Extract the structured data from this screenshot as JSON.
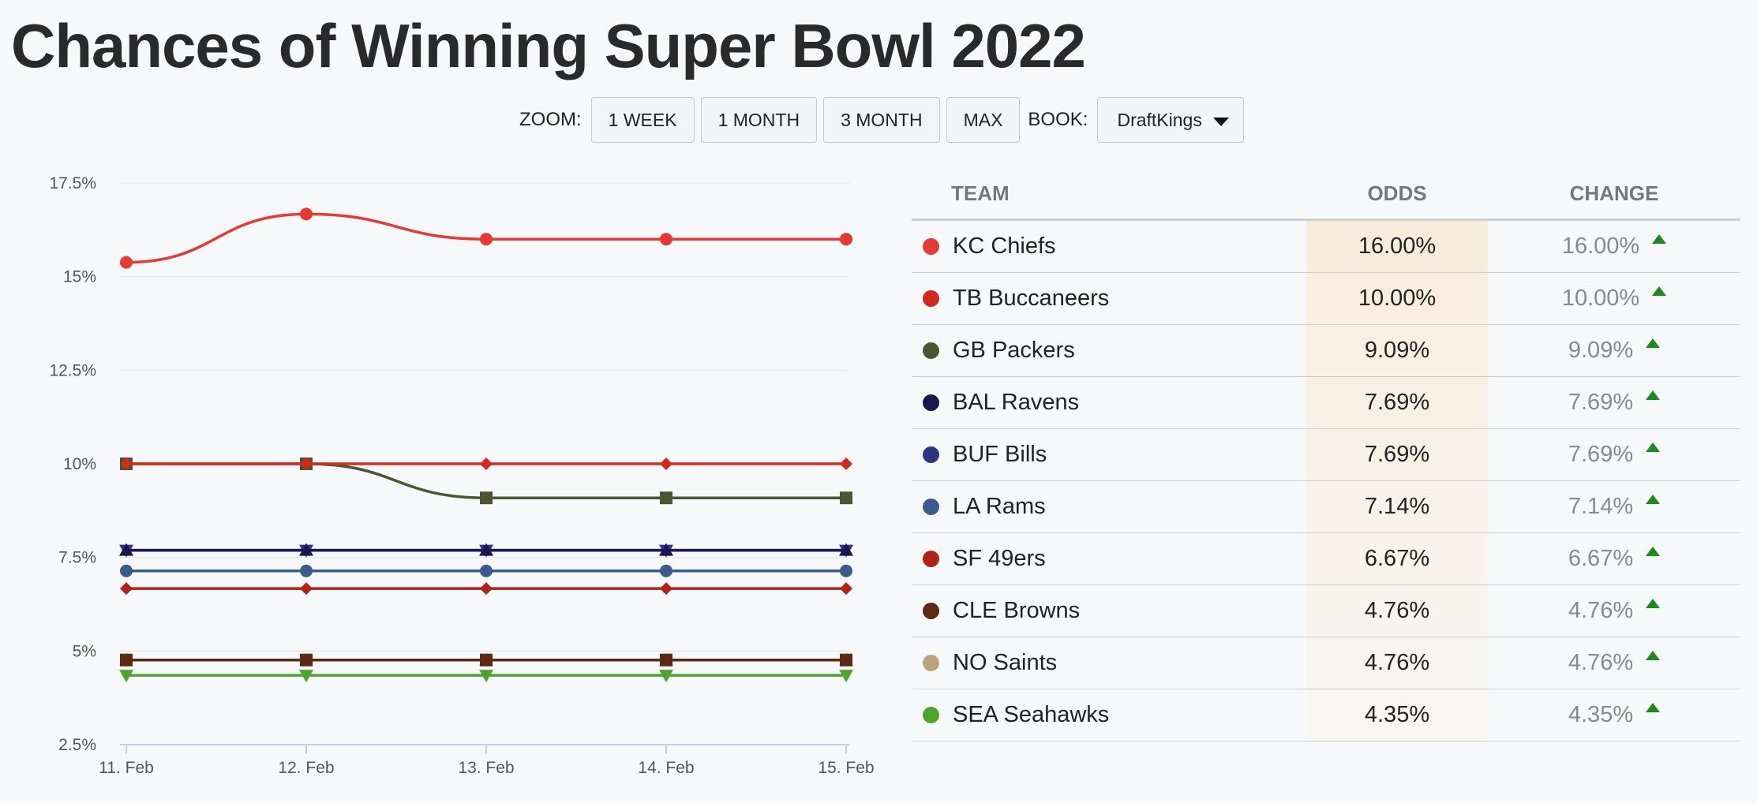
{
  "title": "Chances of Winning Super Bowl 2022",
  "controls": {
    "zoom_label": "ZOOM:",
    "zoom_options": [
      "1 WEEK",
      "1 MONTH",
      "3 MONTH",
      "MAX"
    ],
    "book_label": "BOOK:",
    "book_value": "DraftKings"
  },
  "table": {
    "headers": {
      "team": "TEAM",
      "odds": "ODDS",
      "change": "CHANGE"
    },
    "rows": [
      {
        "team": "KC Chiefs",
        "odds": "16.00%",
        "change": "16.00%",
        "color": "#e53935",
        "odds_bg": "#f8ecdb"
      },
      {
        "team": "TB Buccaneers",
        "odds": "10.00%",
        "change": "10.00%",
        "color": "#d32a1f",
        "odds_bg": "#f9eee0"
      },
      {
        "team": "GB Packers",
        "odds": "9.09%",
        "change": "9.09%",
        "color": "#4e5330",
        "odds_bg": "#f9efe3"
      },
      {
        "team": "BAL Ravens",
        "odds": "7.69%",
        "change": "7.69%",
        "color": "#1e1450",
        "odds_bg": "#f9f0e5"
      },
      {
        "team": "BUF Bills",
        "odds": "7.69%",
        "change": "7.69%",
        "color": "#2d3484",
        "odds_bg": "#f8f1e8"
      },
      {
        "team": "LA Rams",
        "odds": "7.14%",
        "change": "7.14%",
        "color": "#3b5b8c",
        "odds_bg": "#f8f2ea"
      },
      {
        "team": "SF 49ers",
        "odds": "6.67%",
        "change": "6.67%",
        "color": "#b2211a",
        "odds_bg": "#f8f3ed"
      },
      {
        "team": "CLE Browns",
        "odds": "4.76%",
        "change": "4.76%",
        "color": "#5c2a12",
        "odds_bg": "#f7f4ef"
      },
      {
        "team": "NO Saints",
        "odds": "4.76%",
        "change": "4.76%",
        "color": "#b8a37a",
        "odds_bg": "#f7f5f1"
      },
      {
        "team": "SEA Seahawks",
        "odds": "4.35%",
        "change": "4.35%",
        "color": "#4ea52c",
        "odds_bg": "#f7f6f3"
      }
    ]
  },
  "chart_data": {
    "type": "line",
    "title": "",
    "xlabel": "",
    "ylabel": "",
    "x": [
      "11. Feb",
      "12. Feb",
      "13. Feb",
      "14. Feb",
      "15. Feb"
    ],
    "ylim": [
      2.5,
      17.5
    ],
    "yticks": [
      "2.5%",
      "5%",
      "7.5%",
      "10%",
      "12.5%",
      "15%",
      "17.5%"
    ],
    "ytick_values": [
      2.5,
      5,
      7.5,
      10,
      12.5,
      15,
      17.5
    ],
    "grid": true,
    "series": [
      {
        "name": "KC Chiefs",
        "color": "#e53935",
        "marker": "circle",
        "values": [
          15.38,
          16.67,
          16.0,
          16.0,
          16.0
        ]
      },
      {
        "name": "TB Buccaneers",
        "color": "#d32a1f",
        "marker": "diamond",
        "values": [
          10.0,
          10.0,
          10.0,
          10.0,
          10.0
        ]
      },
      {
        "name": "GB Packers",
        "color": "#4e5330",
        "marker": "square",
        "values": [
          10.0,
          10.0,
          9.09,
          9.09,
          9.09
        ]
      },
      {
        "name": "BAL Ravens",
        "color": "#1e1450",
        "marker": "triangle",
        "values": [
          7.69,
          7.69,
          7.69,
          7.69,
          7.69
        ]
      },
      {
        "name": "BUF Bills",
        "color": "#2d3484",
        "marker": "triangle-down",
        "values": [
          7.69,
          7.69,
          7.69,
          7.69,
          7.69
        ]
      },
      {
        "name": "LA Rams",
        "color": "#3b5b8c",
        "marker": "circle",
        "values": [
          7.14,
          7.14,
          7.14,
          7.14,
          7.14
        ]
      },
      {
        "name": "SF 49ers",
        "color": "#b2211a",
        "marker": "diamond",
        "values": [
          6.67,
          6.67,
          6.67,
          6.67,
          6.67
        ]
      },
      {
        "name": "CLE Browns",
        "color": "#5c2a12",
        "marker": "square",
        "values": [
          4.76,
          4.76,
          4.76,
          4.76,
          4.76
        ]
      },
      {
        "name": "NO Saints",
        "color": "#b8a37a",
        "marker": "triangle",
        "values": [
          4.76,
          4.76,
          4.76,
          4.76,
          4.76
        ]
      },
      {
        "name": "SEA Seahawks",
        "color": "#4ea52c",
        "marker": "triangle-down",
        "values": [
          4.35,
          4.35,
          4.35,
          4.35,
          4.35
        ]
      }
    ]
  }
}
